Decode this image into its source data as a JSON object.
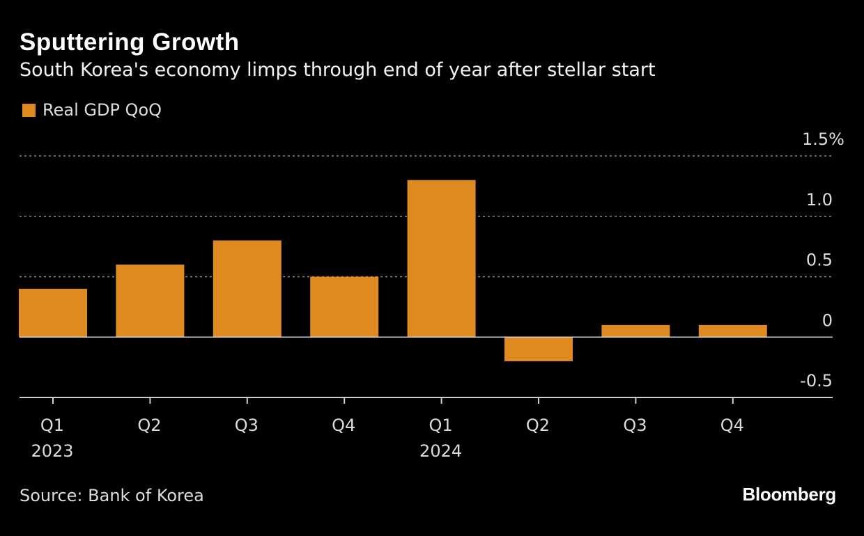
{
  "title": "Sputtering Growth",
  "subtitle": "South Korea's economy limps through end of year after stellar start",
  "source": "Source: Bank of Korea",
  "brand": "Bloomberg",
  "colors": {
    "background": "#000000",
    "bar": "#e08a22",
    "grid": "#8c8c8c",
    "axis": "#cfcfcf",
    "text": "#dcdcdc"
  },
  "chart_data": {
    "type": "bar",
    "title": "Sputtering Growth",
    "subtitle": "South Korea's economy limps through end of year after stellar start",
    "categories": [
      "Q1",
      "Q2",
      "Q3",
      "Q4",
      "Q1",
      "Q2",
      "Q3",
      "Q4"
    ],
    "year_labels": [
      "2023",
      "",
      "",
      "",
      "2024",
      "",
      "",
      ""
    ],
    "series": [
      {
        "name": "Real GDP QoQ",
        "values": [
          0.4,
          0.6,
          0.8,
          0.5,
          1.3,
          -0.2,
          0.1,
          0.1
        ]
      }
    ],
    "y_ticks": [
      -0.5,
      0,
      0.5,
      1.0,
      1.5
    ],
    "y_tick_labels": [
      "-0.5",
      "0",
      "0.5",
      "1.0",
      "1.5%"
    ],
    "ylim": [
      -0.5,
      1.5
    ],
    "xlabel": "",
    "ylabel": "",
    "grid": true,
    "legend_position": "top-left",
    "y_axis_side": "right"
  }
}
